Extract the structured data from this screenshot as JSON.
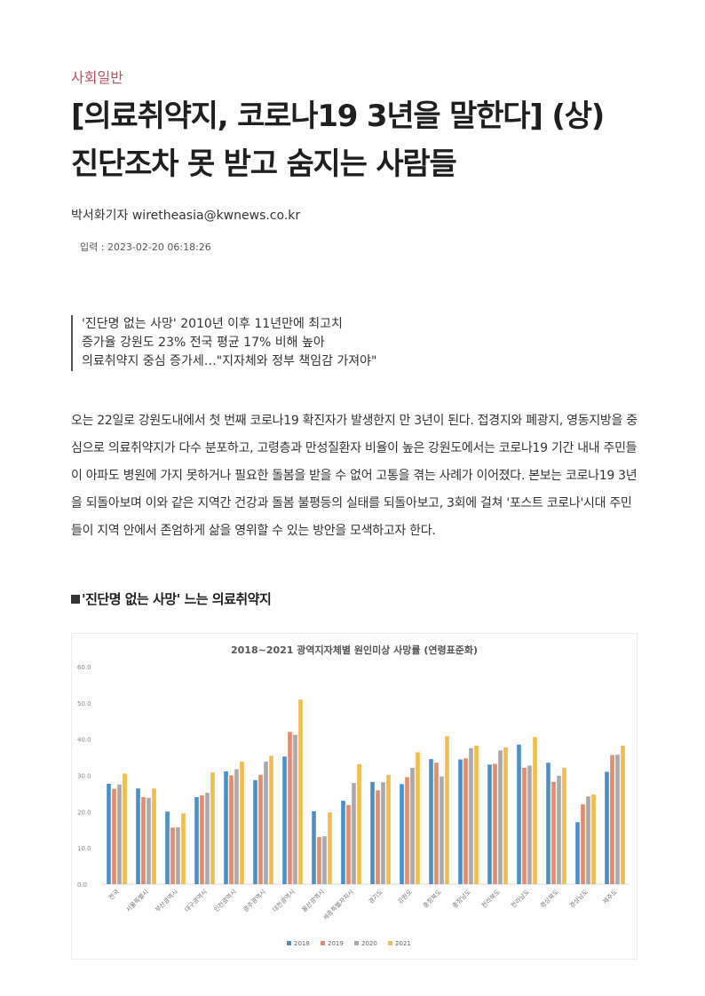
{
  "article": {
    "category": "사회일반",
    "title_line1": "[의료취약지, 코로나19 3년을 말한다] (상)",
    "title_line2": "진단조차 못 받고 숨지는 사람들",
    "byline": "박서화기자 wiretheasia@kwnews.co.kr",
    "date": "입력 : 2023-02-20 06:18:26",
    "subheads": [
      "'진단명 없는 사망' 2010년 이후 11년만에 최고치",
      "증가율 강원도 23% 전국 평균 17% 비해 높아",
      "의료취약지 중심 증가세…\"지자체와 정부 책임감 가져야\""
    ],
    "body": "오는 22일로 강원도내에서 첫 번째 코로나19 확진자가 발생한지 만 3년이 된다. 접경지와 폐광지, 영동지방을 중심으로 의료취약지가 다수 분포하고, 고령층과 만성질환자 비율이 높은 강원도에서는 코로나19 기간 내내 주민들이 아파도 병원에 가지 못하거나 필요한 돌봄을 받을 수 없어 고통을 겪는 사례가 이어졌다. 본보는 코로나19 3년을 되돌아보며 이와 같은 지역간 건강과 돌봄 불평등의 실태를 되돌아보고, 3회에 걸쳐 '포스트 코로나'시대 주민들이 지역 안에서 존엄하게 삶을 영위할 수 있는 방안을 모색하고자 한다.",
    "section_heading": "'진단명 없는 사망' 느는 의료취약지"
  },
  "chart_data": {
    "type": "bar",
    "title": "2018~2021 광역지자체별 원인미상 사망률 (연령표준화)",
    "categories": [
      "전국",
      "서울특별시",
      "부산광역시",
      "대구광역시",
      "인천광역시",
      "광주광역시",
      "대전광역시",
      "울산광역시",
      "세종특별자치시",
      "경기도",
      "강원도",
      "충청북도",
      "충청남도",
      "전라북도",
      "전라남도",
      "경상북도",
      "경상남도",
      "제주도"
    ],
    "y_ticks": [
      "0.0",
      "10.0",
      "20.0",
      "30.0",
      "40.0",
      "50.0",
      "60.0"
    ],
    "ylim": [
      0,
      60
    ],
    "grid": false,
    "legend_position": "bottom",
    "series": [
      {
        "name": "2018",
        "color": "#4a90c8",
        "values": [
          27.7,
          26.4,
          20.0,
          24.0,
          31.1,
          28.7,
          35.2,
          20.1,
          23.0,
          28.2,
          27.6,
          34.5,
          34.4,
          33.0,
          38.5,
          33.5,
          17.1,
          31.0
        ]
      },
      {
        "name": "2019",
        "color": "#e58a6c",
        "values": [
          26.3,
          24.0,
          15.6,
          24.5,
          30.0,
          30.2,
          42.0,
          13.0,
          21.8,
          25.9,
          29.5,
          33.5,
          34.7,
          33.2,
          32.1,
          28.2,
          22.0,
          35.6
        ]
      },
      {
        "name": "2020",
        "color": "#a9a9a9",
        "values": [
          27.5,
          23.8,
          15.7,
          25.2,
          31.7,
          33.8,
          41.2,
          13.2,
          27.9,
          28.1,
          32.1,
          29.7,
          37.5,
          36.9,
          32.7,
          29.9,
          24.2,
          35.7
        ]
      },
      {
        "name": "2021",
        "color": "#f3bc4c",
        "values": [
          30.5,
          26.4,
          19.5,
          30.8,
          33.8,
          35.4,
          50.9,
          19.8,
          33.1,
          30.1,
          36.4,
          40.8,
          38.2,
          37.7,
          40.6,
          32.1,
          24.8,
          38.2
        ]
      }
    ]
  }
}
